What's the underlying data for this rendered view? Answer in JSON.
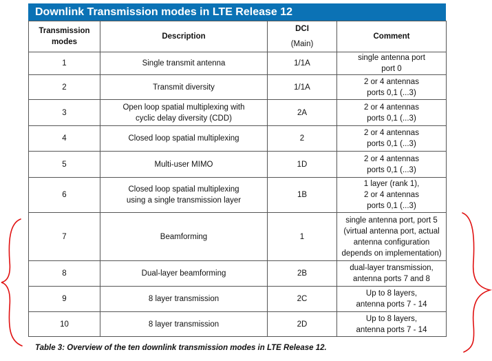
{
  "title": "Downlink Transmission modes in LTE Release 12",
  "headers": {
    "mode": "Transmission\nmodes",
    "description": "Description",
    "dci": "DCI",
    "dci_sub": "(Main)",
    "comment": "Comment"
  },
  "rows": [
    {
      "mode": "1",
      "description": "Single transmit antenna",
      "dci": "1/1A",
      "comment": "single antenna port\nport 0"
    },
    {
      "mode": "2",
      "description": "Transmit diversity",
      "dci": "1/1A",
      "comment": "2 or 4 antennas\nports 0,1 (...3)"
    },
    {
      "mode": "3",
      "description": "Open loop spatial multiplexing with\ncyclic delay diversity (CDD)",
      "dci": "2A",
      "comment": "2 or 4 antennas\nports 0,1 (...3)"
    },
    {
      "mode": "4",
      "description": "Closed loop spatial multiplexing",
      "dci": "2",
      "comment": "2 or 4 antennas\nports 0,1 (...3)"
    },
    {
      "mode": "5",
      "description": "Multi-user MIMO",
      "dci": "1D",
      "comment": "2 or 4 antennas\nports 0,1 (...3)"
    },
    {
      "mode": "6",
      "description": "Closed loop spatial multiplexing\nusing a single transmission layer",
      "dci": "1B",
      "comment": "1 layer (rank 1),\n2 or 4 antennas\nports 0,1 (...3)"
    },
    {
      "mode": "7",
      "description": "Beamforming",
      "dci": "1",
      "comment": "single antenna port, port 5\n(virtual antenna port, actual\nantenna configuration\ndepends on implementation)"
    },
    {
      "mode": "8",
      "description": "Dual-layer beamforming",
      "dci": "2B",
      "comment": "dual-layer transmission,\nantenna ports 7 and 8"
    },
    {
      "mode": "9",
      "description": "8 layer transmission",
      "dci": "2C",
      "comment": "Up to 8 layers,\nantenna ports 7 - 14"
    },
    {
      "mode": "10",
      "description": "8 layer transmission",
      "dci": "2D",
      "comment": "Up to 8 layers,\nantenna ports 7 - 14"
    }
  ],
  "caption": "Table 3: Overview of the ten downlink transmission modes in LTE Release 12.",
  "colors": {
    "title_bar": "#0b72b5",
    "annotation": "#e01010"
  }
}
